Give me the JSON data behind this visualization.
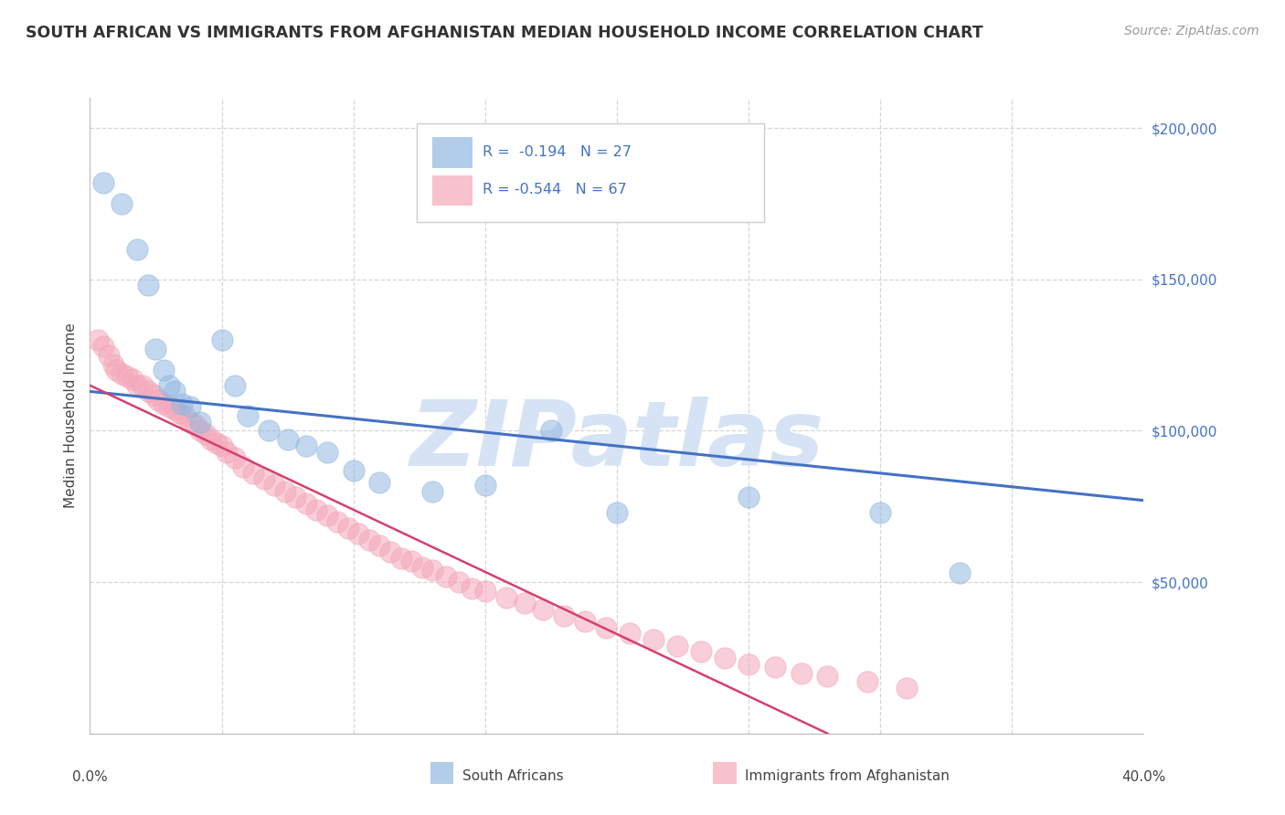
{
  "title": "SOUTH AFRICAN VS IMMIGRANTS FROM AFGHANISTAN MEDIAN HOUSEHOLD INCOME CORRELATION CHART",
  "source": "Source: ZipAtlas.com",
  "ylabel": "Median Household Income",
  "yticks": [
    0,
    50000,
    100000,
    150000,
    200000
  ],
  "ytick_labels": [
    "",
    "$50,000",
    "$100,000",
    "$150,000",
    "$200,000"
  ],
  "xmin": 0.0,
  "xmax": 0.4,
  "ymin": 0,
  "ymax": 210000,
  "blue_R": -0.194,
  "blue_N": 27,
  "pink_R": -0.544,
  "pink_N": 67,
  "blue_color": "#92b8e0",
  "pink_color": "#f4a7b9",
  "blue_line_color": "#4472c4",
  "pink_line_color": "#d44070",
  "watermark": "ZIPatlas",
  "watermark_color": "#d5e3f5",
  "background_color": "#ffffff",
  "grid_color": "#cccccc",
  "blue_scatter_x": [
    0.005,
    0.012,
    0.018,
    0.022,
    0.025,
    0.028,
    0.03,
    0.032,
    0.035,
    0.038,
    0.042,
    0.05,
    0.055,
    0.06,
    0.068,
    0.075,
    0.082,
    0.09,
    0.1,
    0.11,
    0.13,
    0.15,
    0.175,
    0.2,
    0.25,
    0.3,
    0.33
  ],
  "blue_scatter_y": [
    182000,
    175000,
    160000,
    148000,
    127000,
    120000,
    115000,
    113000,
    109000,
    108000,
    103000,
    130000,
    115000,
    105000,
    100000,
    97000,
    95000,
    93000,
    87000,
    83000,
    80000,
    82000,
    100000,
    73000,
    78000,
    73000,
    53000
  ],
  "pink_scatter_x": [
    0.003,
    0.005,
    0.007,
    0.009,
    0.01,
    0.012,
    0.014,
    0.016,
    0.018,
    0.02,
    0.022,
    0.024,
    0.026,
    0.028,
    0.03,
    0.032,
    0.034,
    0.036,
    0.038,
    0.04,
    0.042,
    0.044,
    0.046,
    0.048,
    0.05,
    0.052,
    0.055,
    0.058,
    0.062,
    0.066,
    0.07,
    0.074,
    0.078,
    0.082,
    0.086,
    0.09,
    0.094,
    0.098,
    0.102,
    0.106,
    0.11,
    0.114,
    0.118,
    0.122,
    0.126,
    0.13,
    0.135,
    0.14,
    0.145,
    0.15,
    0.158,
    0.165,
    0.172,
    0.18,
    0.188,
    0.196,
    0.205,
    0.214,
    0.223,
    0.232,
    0.241,
    0.25,
    0.26,
    0.27,
    0.28,
    0.295,
    0.31
  ],
  "pink_scatter_y": [
    130000,
    128000,
    125000,
    122000,
    120000,
    119000,
    118000,
    117000,
    115000,
    115000,
    113000,
    112000,
    110000,
    109000,
    108000,
    107000,
    106000,
    105000,
    103000,
    102000,
    100000,
    99000,
    97000,
    96000,
    95000,
    93000,
    91000,
    88000,
    86000,
    84000,
    82000,
    80000,
    78000,
    76000,
    74000,
    72000,
    70000,
    68000,
    66000,
    64000,
    62000,
    60000,
    58000,
    57000,
    55000,
    54000,
    52000,
    50000,
    48000,
    47000,
    45000,
    43000,
    41000,
    39000,
    37000,
    35000,
    33000,
    31000,
    29000,
    27000,
    25000,
    23000,
    22000,
    20000,
    19000,
    17000,
    15000
  ],
  "blue_line_x0": 0.0,
  "blue_line_y0": 113000,
  "blue_line_x1": 0.4,
  "blue_line_y1": 77000,
  "pink_line_x0": 0.0,
  "pink_line_y0": 115000,
  "pink_line_x1": 0.28,
  "pink_line_y1": 0,
  "legend_label1": "South Africans",
  "legend_label2": "Immigrants from Afghanistan"
}
